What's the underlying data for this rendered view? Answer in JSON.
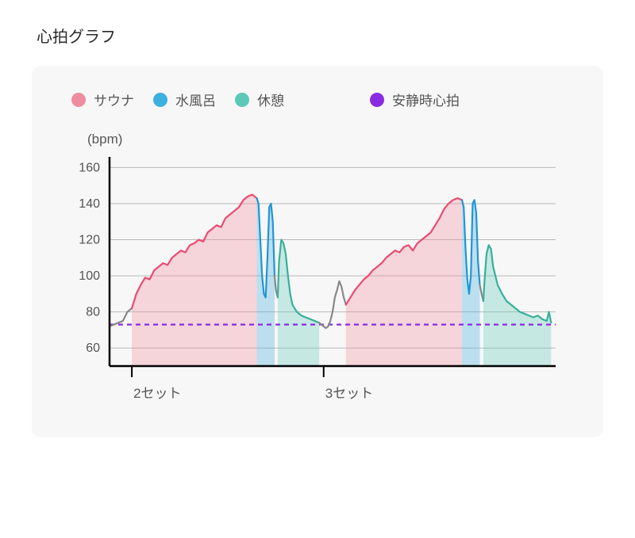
{
  "title": "心拍グラフ",
  "y_unit": "(bpm)",
  "legend": {
    "sauna": {
      "label": "サウナ",
      "color": "#f08ca0"
    },
    "cold": {
      "label": "水風呂",
      "color": "#3dafe0"
    },
    "rest": {
      "label": "休憩",
      "color": "#5cc9b8"
    },
    "resting": {
      "label": "安静時心拍",
      "color": "#8a2be2"
    }
  },
  "chart": {
    "type": "line-area",
    "background_color": "#f8f7f7",
    "grid_color": "#888888",
    "axis_color": "#000000",
    "axis_width": 2.5,
    "grid_width": 1,
    "resting_hr_value": 73,
    "resting_hr_dash": "6,5",
    "resting_hr_width": 2.2,
    "y_axis": {
      "min": 50,
      "max": 165,
      "ticks": [
        60,
        80,
        100,
        120,
        140,
        160
      ]
    },
    "x_axis": {
      "min": 0,
      "max": 100,
      "set_ticks": [
        {
          "x": 5,
          "label": "2セット"
        },
        {
          "x": 48,
          "label": "3セット"
        }
      ]
    },
    "fill_opacity": 0.32,
    "line_width": 2.2,
    "segments": [
      {
        "phase": "gap",
        "points": [
          [
            0,
            72
          ],
          [
            1,
            73
          ],
          [
            2,
            74
          ],
          [
            3,
            75
          ],
          [
            4,
            80
          ],
          [
            5,
            82
          ]
        ]
      },
      {
        "phase": "sauna",
        "points": [
          [
            5,
            82
          ],
          [
            6,
            90
          ],
          [
            7,
            95
          ],
          [
            8,
            99
          ],
          [
            9,
            98
          ],
          [
            10,
            103
          ],
          [
            11,
            105
          ],
          [
            12,
            107
          ],
          [
            13,
            106
          ],
          [
            14,
            110
          ],
          [
            15,
            112
          ],
          [
            16,
            114
          ],
          [
            17,
            113
          ],
          [
            18,
            117
          ],
          [
            19,
            118
          ],
          [
            20,
            120
          ],
          [
            21,
            119
          ],
          [
            22,
            124
          ],
          [
            23,
            126
          ],
          [
            24,
            128
          ],
          [
            25,
            127
          ],
          [
            26,
            132
          ],
          [
            27,
            134
          ],
          [
            28,
            136
          ],
          [
            29,
            138
          ],
          [
            30,
            142
          ],
          [
            31,
            144
          ],
          [
            32,
            145
          ],
          [
            33,
            143
          ]
        ]
      },
      {
        "phase": "cold",
        "points": [
          [
            33,
            143
          ],
          [
            33.4,
            140
          ],
          [
            33.8,
            120
          ],
          [
            34.2,
            100
          ],
          [
            34.6,
            90
          ],
          [
            35,
            88
          ],
          [
            35.4,
            110
          ],
          [
            35.8,
            138
          ],
          [
            36.2,
            140
          ],
          [
            36.6,
            130
          ],
          [
            37,
            100
          ]
        ]
      },
      {
        "phase": "gap",
        "points": [
          [
            37,
            100
          ],
          [
            37.3,
            92
          ],
          [
            37.7,
            88
          ]
        ]
      },
      {
        "phase": "rest",
        "points": [
          [
            37.7,
            88
          ],
          [
            38,
            108
          ],
          [
            38.5,
            120
          ],
          [
            39,
            118
          ],
          [
            39.5,
            112
          ],
          [
            40,
            100
          ],
          [
            40.5,
            90
          ],
          [
            41,
            84
          ],
          [
            42,
            80
          ],
          [
            43,
            78
          ],
          [
            44,
            77
          ],
          [
            45,
            76
          ],
          [
            46,
            75
          ],
          [
            47,
            74
          ]
        ]
      },
      {
        "phase": "gap",
        "points": [
          [
            47,
            74
          ],
          [
            47.5,
            73
          ],
          [
            48,
            72
          ],
          [
            48.5,
            71
          ],
          [
            49,
            72
          ],
          [
            49.5,
            75
          ],
          [
            50,
            80
          ],
          [
            50.5,
            88
          ],
          [
            51,
            92
          ],
          [
            51.5,
            97
          ],
          [
            52,
            94
          ],
          [
            52.5,
            88
          ],
          [
            53,
            84
          ]
        ]
      },
      {
        "phase": "sauna",
        "points": [
          [
            53,
            84
          ],
          [
            54,
            88
          ],
          [
            55,
            92
          ],
          [
            56,
            95
          ],
          [
            57,
            98
          ],
          [
            58,
            100
          ],
          [
            59,
            103
          ],
          [
            60,
            105
          ],
          [
            61,
            107
          ],
          [
            62,
            110
          ],
          [
            63,
            112
          ],
          [
            64,
            114
          ],
          [
            65,
            113
          ],
          [
            66,
            116
          ],
          [
            67,
            117
          ],
          [
            68,
            114
          ],
          [
            69,
            118
          ],
          [
            70,
            120
          ],
          [
            71,
            122
          ],
          [
            72,
            124
          ],
          [
            73,
            128
          ],
          [
            74,
            132
          ],
          [
            75,
            137
          ],
          [
            76,
            140
          ],
          [
            77,
            142
          ],
          [
            78,
            143
          ],
          [
            79,
            142
          ]
        ]
      },
      {
        "phase": "cold",
        "points": [
          [
            79,
            142
          ],
          [
            79.4,
            138
          ],
          [
            79.8,
            115
          ],
          [
            80.2,
            98
          ],
          [
            80.6,
            90
          ],
          [
            81,
            100
          ],
          [
            81.4,
            140
          ],
          [
            81.8,
            142
          ],
          [
            82.2,
            135
          ],
          [
            82.6,
            108
          ],
          [
            83,
            95
          ]
        ]
      },
      {
        "phase": "gap",
        "points": [
          [
            83,
            95
          ],
          [
            83.4,
            90
          ],
          [
            83.8,
            86
          ]
        ]
      },
      {
        "phase": "rest",
        "points": [
          [
            83.8,
            86
          ],
          [
            84,
            95
          ],
          [
            84.5,
            112
          ],
          [
            85,
            117
          ],
          [
            85.5,
            115
          ],
          [
            86,
            105
          ],
          [
            87,
            95
          ],
          [
            88,
            90
          ],
          [
            89,
            86
          ],
          [
            90,
            84
          ],
          [
            91,
            82
          ],
          [
            92,
            80
          ],
          [
            93,
            79
          ],
          [
            94,
            78
          ],
          [
            95,
            77
          ],
          [
            96,
            78
          ],
          [
            97,
            76
          ],
          [
            98,
            75
          ],
          [
            98.5,
            80
          ],
          [
            99,
            74
          ]
        ]
      }
    ]
  }
}
